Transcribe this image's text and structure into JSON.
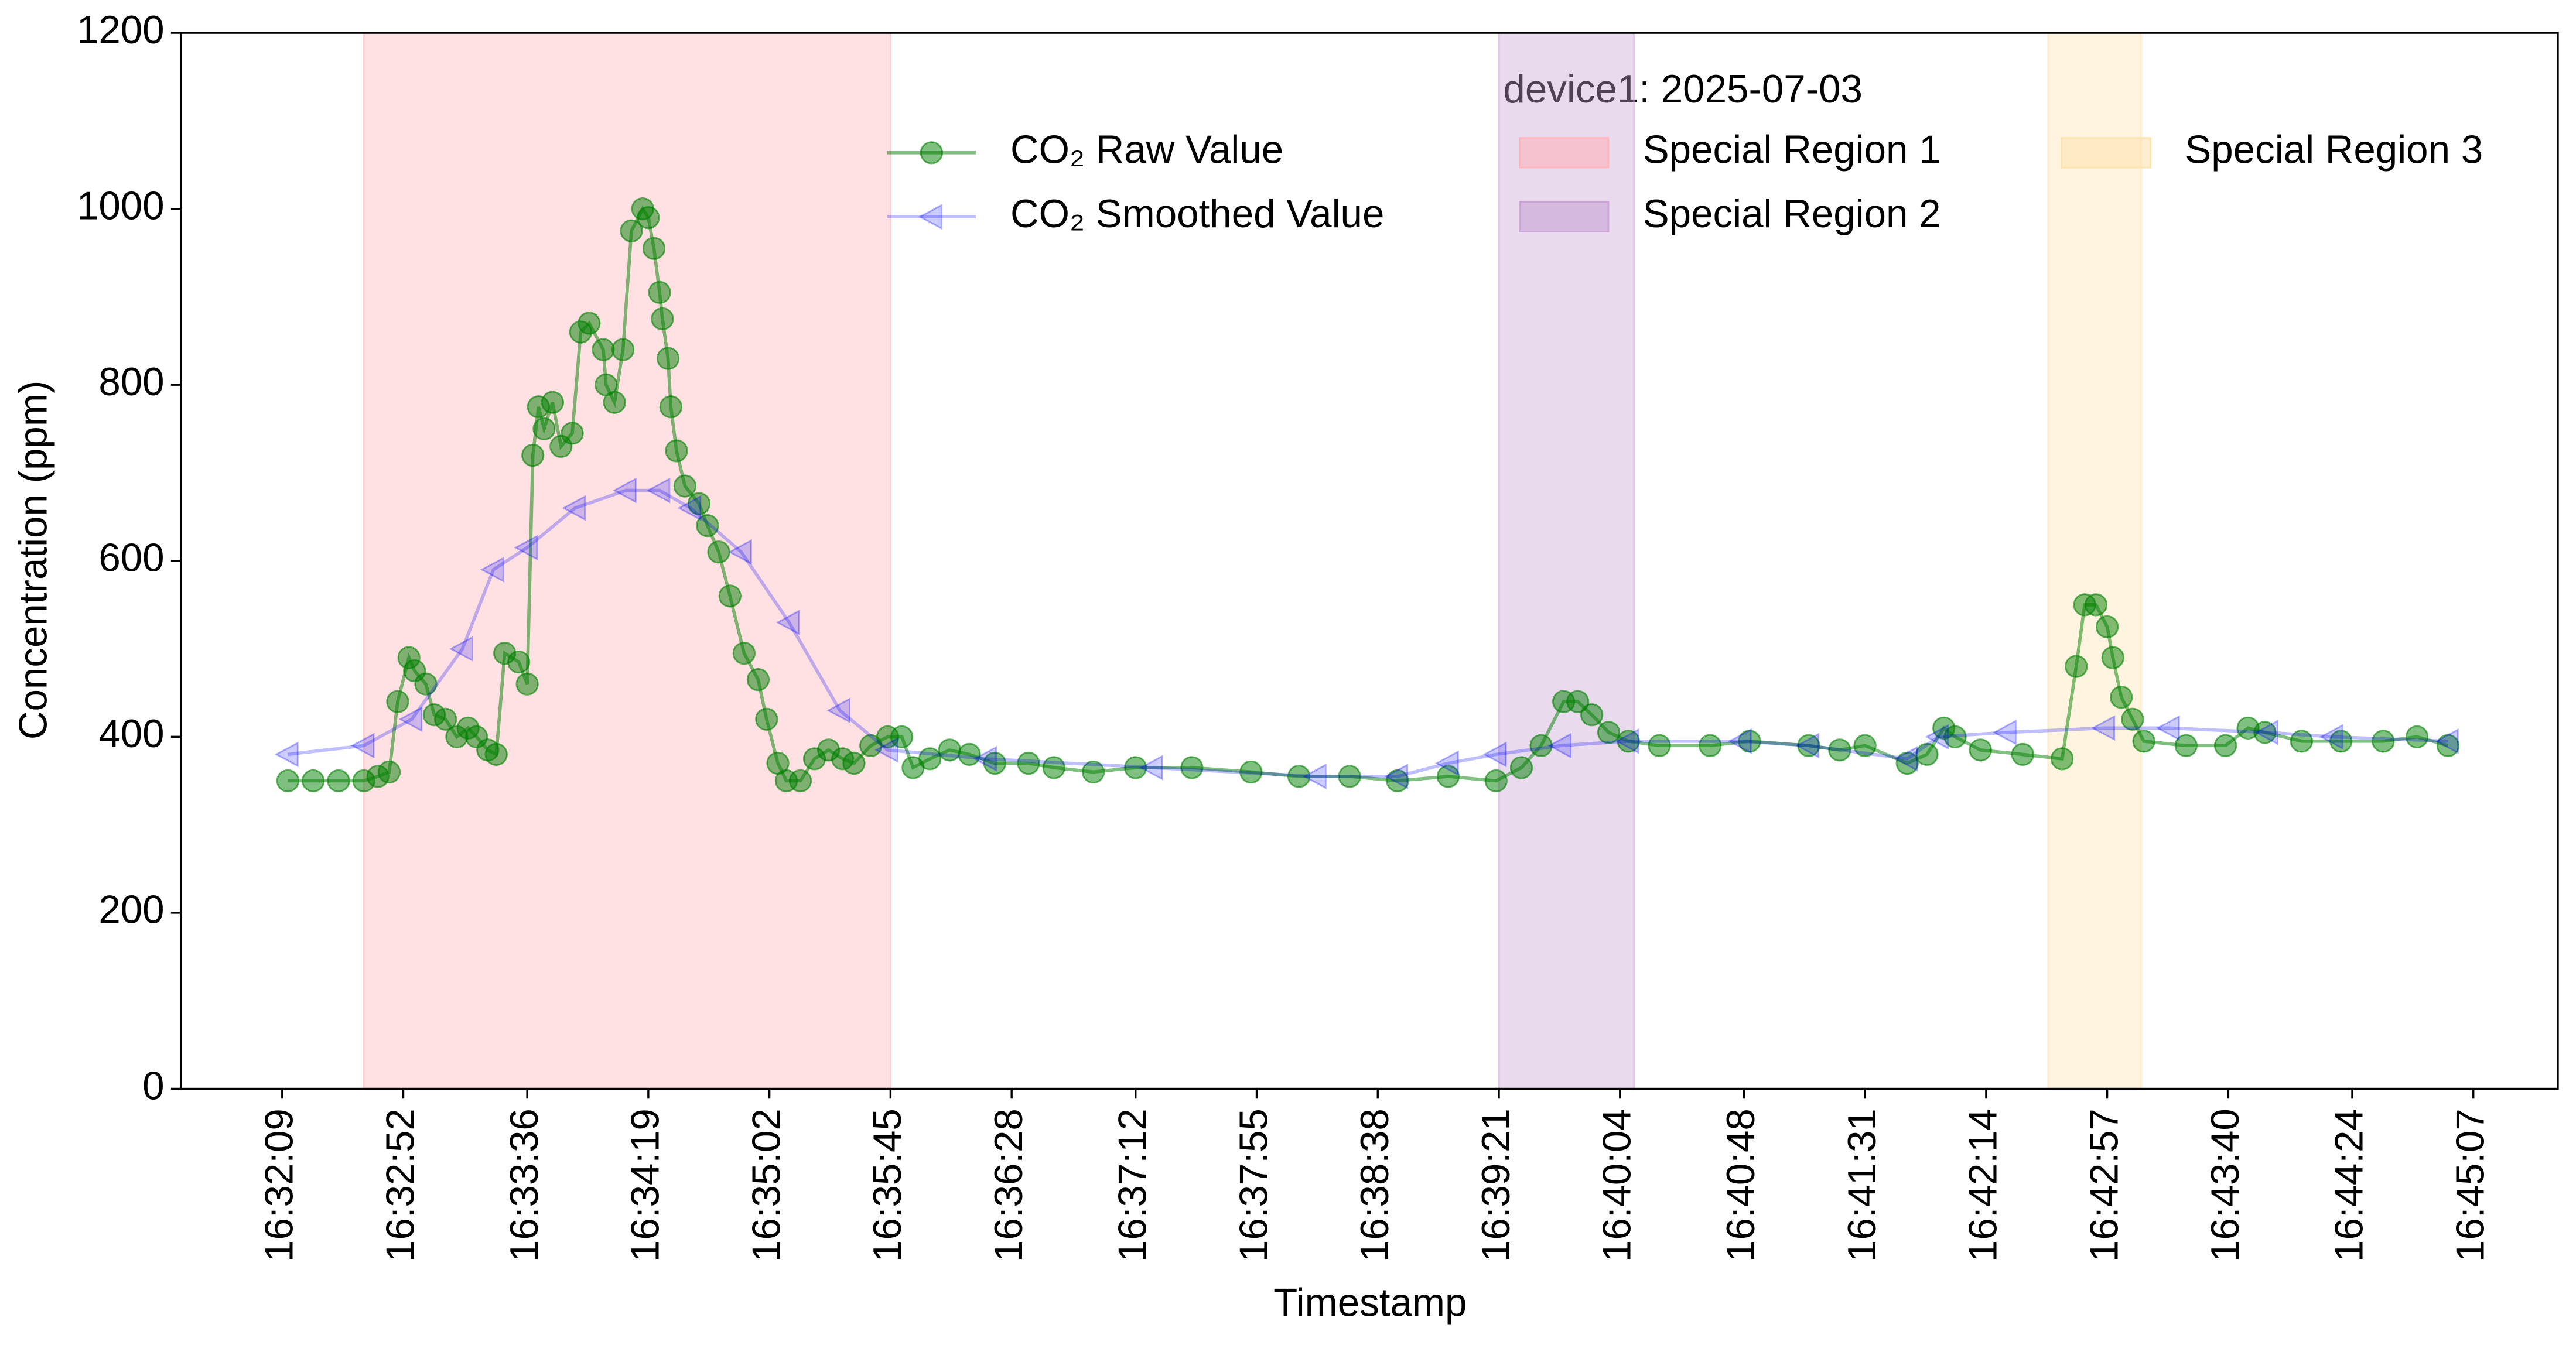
{
  "chart_data": {
    "type": "line",
    "xlabel": "Timestamp",
    "ylabel": "Concentration (ppm)",
    "xlim": [
      "16:31:33",
      "16:45:37"
    ],
    "xticks": [
      "16:32:09",
      "16:32:52",
      "16:33:36",
      "16:34:19",
      "16:35:02",
      "16:35:45",
      "16:36:28",
      "16:37:12",
      "16:37:55",
      "16:38:38",
      "16:39:21",
      "16:40:04",
      "16:40:48",
      "16:41:31",
      "16:42:14",
      "16:42:57",
      "16:43:40",
      "16:44:24",
      "16:45:07"
    ],
    "ylim": [
      0,
      1200
    ],
    "yticks": [
      0,
      200,
      400,
      600,
      800,
      1000,
      1200
    ],
    "grid": false,
    "legend_title": "device1: 2025-07-03",
    "legend_position": "upper right",
    "regions": [
      {
        "name": "Special Region 1",
        "start": "16:32:38",
        "end": "16:35:45",
        "color": "#ffb3ba"
      },
      {
        "name": "Special Region 2",
        "start": "16:39:21",
        "end": "16:40:09",
        "color": "#c9a3d4"
      },
      {
        "name": "Special Region 3",
        "start": "16:42:36",
        "end": "16:43:09",
        "color": "#fde3b0"
      }
    ],
    "series": [
      {
        "name": "CO₂ Raw Value",
        "color": "#008000",
        "marker": "circle",
        "x": [
          "16:32:11",
          "16:32:20",
          "16:32:29",
          "16:32:38",
          "16:32:43",
          "16:32:47",
          "16:32:50",
          "16:32:54",
          "16:32:56",
          "16:33:00",
          "16:33:03",
          "16:33:07",
          "16:33:11",
          "16:33:15",
          "16:33:18",
          "16:33:22",
          "16:33:25",
          "16:33:28",
          "16:33:33",
          "16:33:36",
          "16:33:38",
          "16:33:40",
          "16:33:42",
          "16:33:45",
          "16:33:48",
          "16:33:52",
          "16:33:55",
          "16:33:58",
          "16:34:03",
          "16:34:04",
          "16:34:07",
          "16:34:10",
          "16:34:13",
          "16:34:17",
          "16:34:19",
          "16:34:21",
          "16:34:23",
          "16:34:24",
          "16:34:26",
          "16:34:27",
          "16:34:29",
          "16:34:32",
          "16:34:37",
          "16:34:40",
          "16:34:44",
          "16:34:48",
          "16:34:53",
          "16:34:58",
          "16:35:01",
          "16:35:05",
          "16:35:08",
          "16:35:13",
          "16:35:18",
          "16:35:23",
          "16:35:28",
          "16:35:32",
          "16:35:38",
          "16:35:44",
          "16:35:49",
          "16:35:53",
          "16:35:59",
          "16:36:06",
          "16:36:13",
          "16:36:22",
          "16:36:34",
          "16:36:43",
          "16:36:57",
          "16:37:12",
          "16:37:32",
          "16:37:53",
          "16:38:10",
          "16:38:28",
          "16:38:45",
          "16:39:03",
          "16:39:20",
          "16:39:29",
          "16:39:36",
          "16:39:44",
          "16:39:49",
          "16:39:54",
          "16:40:00",
          "16:40:07",
          "16:40:18",
          "16:40:36",
          "16:40:50",
          "16:41:11",
          "16:41:22",
          "16:41:31",
          "16:41:46",
          "16:41:53",
          "16:41:59",
          "16:42:03",
          "16:42:12",
          "16:42:27",
          "16:42:41",
          "16:42:46",
          "16:42:49",
          "16:42:53",
          "16:42:57",
          "16:42:59",
          "16:43:02",
          "16:43:06",
          "16:43:10",
          "16:43:25",
          "16:43:39",
          "16:43:47",
          "16:43:53",
          "16:44:06",
          "16:44:20",
          "16:44:35",
          "16:44:47",
          "16:44:58"
        ],
        "values": [
          350,
          350,
          350,
          350,
          355,
          360,
          440,
          490,
          475,
          460,
          425,
          420,
          400,
          410,
          400,
          385,
          380,
          495,
          485,
          460,
          720,
          775,
          750,
          780,
          730,
          745,
          860,
          870,
          840,
          800,
          780,
          840,
          975,
          1000,
          990,
          955,
          905,
          875,
          830,
          775,
          725,
          685,
          665,
          640,
          610,
          560,
          495,
          465,
          420,
          370,
          350,
          350,
          375,
          385,
          375,
          370,
          390,
          400,
          400,
          365,
          375,
          385,
          380,
          370,
          370,
          365,
          360,
          365,
          365,
          360,
          355,
          355,
          350,
          355,
          350,
          365,
          390,
          440,
          440,
          425,
          405,
          395,
          390,
          390,
          395,
          390,
          385,
          390,
          370,
          380,
          410,
          400,
          385,
          380,
          375,
          480,
          550,
          550,
          525,
          490,
          445,
          420,
          395,
          390,
          390,
          410,
          405,
          395,
          395,
          395,
          400,
          390
        ]
      },
      {
        "name": "CO₂ Smoothed Value",
        "color": "#0000ff",
        "marker": "triangle-left",
        "x": [
          "16:32:11",
          "16:32:38",
          "16:32:55",
          "16:33:13",
          "16:33:24",
          "16:33:36",
          "16:33:53",
          "16:34:11",
          "16:34:23",
          "16:34:34",
          "16:34:52",
          "16:35:09",
          "16:35:27",
          "16:35:44",
          "16:36:19",
          "16:37:18",
          "16:38:16",
          "16:38:45",
          "16:39:03",
          "16:39:20",
          "16:39:43",
          "16:40:07",
          "16:40:47",
          "16:41:11",
          "16:41:46",
          "16:41:57",
          "16:42:21",
          "16:42:56",
          "16:43:19",
          "16:43:54",
          "16:44:17",
          "16:44:58"
        ],
        "values": [
          380,
          390,
          420,
          500,
          590,
          615,
          660,
          680,
          680,
          660,
          610,
          530,
          430,
          385,
          375,
          365,
          355,
          355,
          370,
          380,
          390,
          395,
          395,
          390,
          375,
          400,
          405,
          410,
          410,
          405,
          400,
          395
        ]
      }
    ]
  }
}
